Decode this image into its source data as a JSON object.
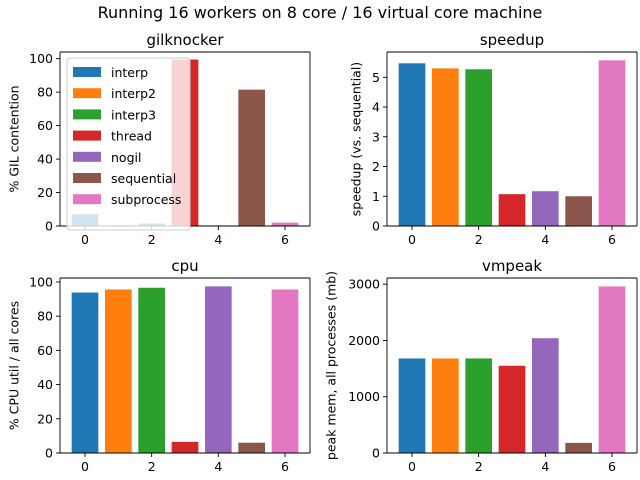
{
  "suptitle": "Running 16 workers on 8 core / 16 virtual core machine",
  "colors": [
    "#1f77b4",
    "#ff7f0e",
    "#2ca02c",
    "#d62728",
    "#9467bd",
    "#8c564b",
    "#e377c2"
  ],
  "chart_data": [
    {
      "type": "bar",
      "title": "gilknocker",
      "ylabel": "% GIL contention",
      "xlabel": "",
      "x": [
        0,
        1,
        2,
        3,
        4,
        5,
        6
      ],
      "series_names": [
        "interp",
        "interp2",
        "interp3",
        "thread",
        "nogil",
        "sequential",
        "subprocess"
      ],
      "values": [
        7,
        0.5,
        1.5,
        99.5,
        0,
        81.5,
        2
      ],
      "xlim": [
        -0.75,
        6.75
      ],
      "ylim": [
        0,
        104
      ],
      "xticks": [
        0,
        2,
        4,
        6
      ],
      "yticks": [
        0,
        20,
        40,
        60,
        80,
        100
      ],
      "legend": "upper-left"
    },
    {
      "type": "bar",
      "title": "speedup",
      "ylabel": "speedup (vs. sequential)",
      "xlabel": "",
      "x": [
        0,
        1,
        2,
        3,
        4,
        5,
        6
      ],
      "values": [
        5.47,
        5.3,
        5.27,
        1.07,
        1.17,
        1.0,
        5.57
      ],
      "xlim": [
        -0.75,
        6.75
      ],
      "ylim": [
        0,
        5.85
      ],
      "xticks": [
        0,
        2,
        4,
        6
      ],
      "yticks": [
        0,
        1,
        2,
        3,
        4,
        5
      ]
    },
    {
      "type": "bar",
      "title": "cpu",
      "ylabel": "% CPU util / all cores",
      "xlabel": "",
      "x": [
        0,
        1,
        2,
        3,
        4,
        5,
        6
      ],
      "values": [
        93.8,
        95.6,
        96.6,
        6.5,
        97.4,
        6.0,
        95.6
      ],
      "xlim": [
        -0.75,
        6.75
      ],
      "ylim": [
        0,
        102.3
      ],
      "xticks": [
        0,
        2,
        4,
        6
      ],
      "yticks": [
        0,
        20,
        40,
        60,
        80,
        100
      ]
    },
    {
      "type": "bar",
      "title": "vmpeak",
      "ylabel": "peak mem, all processes (mb)",
      "xlabel": "",
      "x": [
        0,
        1,
        2,
        3,
        4,
        5,
        6
      ],
      "values": [
        1680,
        1680,
        1680,
        1550,
        2040,
        180,
        2960
      ],
      "xlim": [
        -0.75,
        6.75
      ],
      "ylim": [
        0,
        3110
      ],
      "xticks": [
        0,
        2,
        4,
        6
      ],
      "yticks": [
        0,
        1000,
        2000,
        3000
      ]
    }
  ]
}
